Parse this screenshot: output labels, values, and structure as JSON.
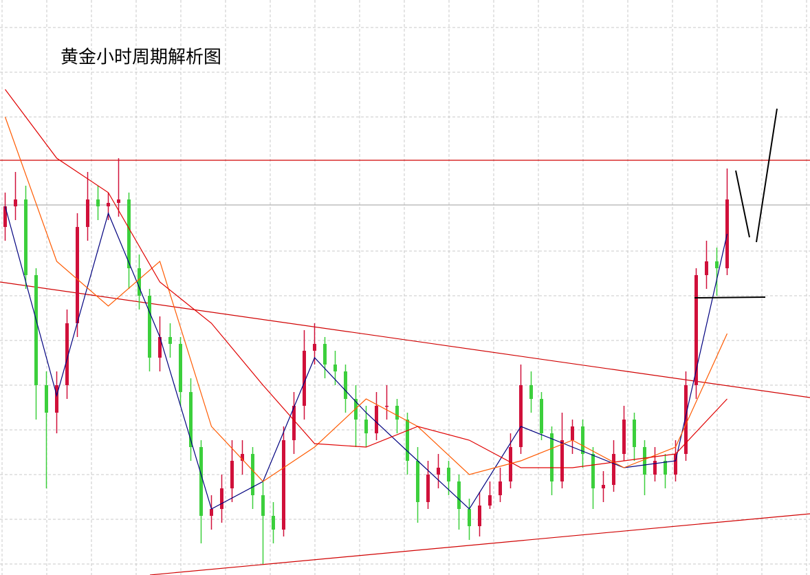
{
  "chart_data": {
    "type": "candlestick",
    "title": "黄金小时周期解析图",
    "ylim": [
      0,
      836
    ],
    "up_color": "#d0103a",
    "down_color": "#3ccf3c",
    "ohlc": [
      [
        506,
        556,
        486,
        536
      ],
      [
        536,
        586,
        516,
        546
      ],
      [
        546,
        566,
        416,
        436
      ],
      [
        436,
        446,
        226,
        276
      ],
      [
        276,
        296,
        126,
        236
      ],
      [
        236,
        296,
        206,
        276
      ],
      [
        276,
        386,
        256,
        366
      ],
      [
        366,
        526,
        346,
        506
      ],
      [
        506,
        586,
        486,
        546
      ],
      [
        546,
        566,
        516,
        536
      ],
      [
        536,
        556,
        516,
        541
      ],
      [
        541,
        606,
        521,
        546
      ],
      [
        546,
        556,
        416,
        446
      ],
      [
        446,
        466,
        386,
        406
      ],
      [
        406,
        416,
        296,
        316
      ],
      [
        316,
        376,
        296,
        346
      ],
      [
        346,
        366,
        316,
        336
      ],
      [
        336,
        346,
        246,
        266
      ],
      [
        266,
        286,
        166,
        186
      ],
      [
        186,
        196,
        46,
        86
      ],
      [
        86,
        116,
        66,
        96
      ],
      [
        96,
        146,
        76,
        126
      ],
      [
        126,
        196,
        106,
        166
      ],
      [
        166,
        196,
        146,
        176
      ],
      [
        176,
        186,
        96,
        116
      ],
      [
        116,
        136,
        16,
        86
      ],
      [
        86,
        106,
        46,
        66
      ],
      [
        66,
        216,
        56,
        196
      ],
      [
        196,
        266,
        176,
        246
      ],
      [
        246,
        356,
        226,
        326
      ],
      [
        326,
        366,
        306,
        336
      ],
      [
        336,
        346,
        286,
        306
      ],
      [
        306,
        326,
        276,
        296
      ],
      [
        296,
        306,
        236,
        256
      ],
      [
        256,
        276,
        186,
        226
      ],
      [
        226,
        246,
        186,
        206
      ],
      [
        206,
        266,
        196,
        246
      ],
      [
        246,
        276,
        226,
        246
      ],
      [
        246,
        256,
        206,
        226
      ],
      [
        226,
        236,
        146,
        166
      ],
      [
        166,
        186,
        76,
        106
      ],
      [
        106,
        166,
        96,
        146
      ],
      [
        146,
        176,
        126,
        156
      ],
      [
        156,
        166,
        116,
        136
      ],
      [
        136,
        146,
        66,
        96
      ],
      [
        96,
        111,
        51,
        71
      ],
      [
        71,
        121,
        56,
        101
      ],
      [
        101,
        136,
        96,
        116
      ],
      [
        116,
        156,
        106,
        136
      ],
      [
        136,
        206,
        126,
        186
      ],
      [
        186,
        306,
        176,
        276
      ],
      [
        276,
        296,
        236,
        256
      ],
      [
        256,
        266,
        196,
        206
      ],
      [
        206,
        216,
        116,
        136
      ],
      [
        136,
        236,
        126,
        196
      ],
      [
        196,
        226,
        176,
        216
      ],
      [
        216,
        226,
        156,
        176
      ],
      [
        176,
        186,
        96,
        126
      ],
      [
        126,
        151,
        106,
        131
      ],
      [
        131,
        196,
        121,
        176
      ],
      [
        176,
        246,
        166,
        226
      ],
      [
        226,
        236,
        166,
        186
      ],
      [
        186,
        196,
        116,
        146
      ],
      [
        146,
        186,
        136,
        166
      ],
      [
        166,
        176,
        126,
        146
      ],
      [
        146,
        196,
        136,
        176
      ],
      [
        176,
        296,
        166,
        276
      ],
      [
        276,
        446,
        256,
        436
      ],
      [
        436,
        486,
        416,
        456
      ],
      [
        456,
        476,
        406,
        446
      ],
      [
        446,
        591,
        436,
        546
      ]
    ],
    "ma_x": [
      0,
      5,
      10,
      15,
      20,
      25,
      30,
      35,
      40,
      45,
      50,
      55,
      60,
      65,
      70
    ],
    "ma": [
      {
        "color": "#00007f",
        "values": [
          536,
          261,
          526,
          346,
          96,
          136,
          316,
          236,
          166,
          96,
          216,
          186,
          156,
          166,
          496
        ]
      },
      {
        "color": "#ff5a00",
        "values": [
          666,
          456,
          391,
          456,
          216,
          136,
          186,
          256,
          216,
          146,
          166,
          196,
          156,
          186,
          351
        ]
      },
      {
        "color": "#e00000",
        "values": [
          706,
          606,
          556,
          426,
          366,
          276,
          191,
          186,
          216,
          196,
          156,
          156,
          166,
          176,
          256
        ]
      }
    ],
    "levels": [
      {
        "value": 603,
        "color": "#d00000"
      },
      {
        "value": 538,
        "color": "#b0b0b0"
      }
    ]
  }
}
